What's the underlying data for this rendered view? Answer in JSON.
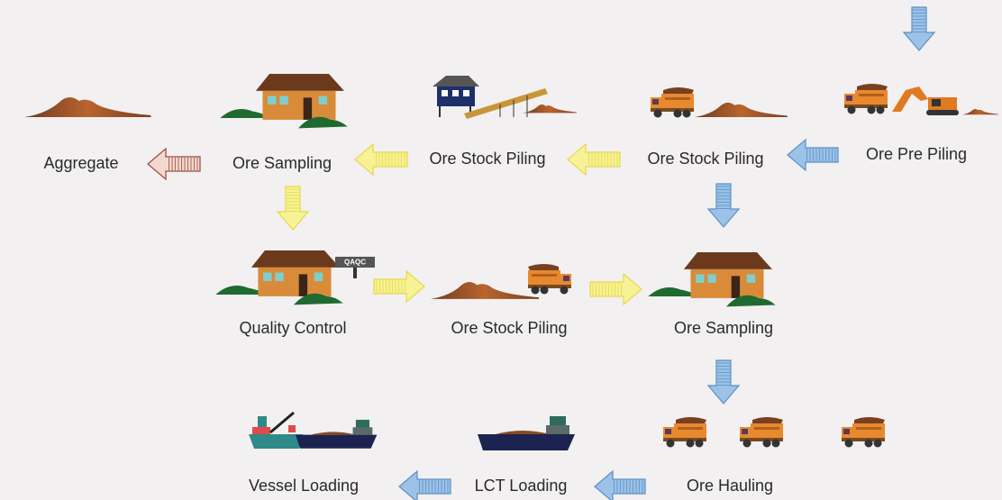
{
  "nodes": [
    {
      "label": "Ore Pre Piling"
    },
    {
      "label": "Ore Stock Piling"
    },
    {
      "label": "Ore Stock Piling"
    },
    {
      "label": "Ore Sampling"
    },
    {
      "label": "Aggregate"
    },
    {
      "label": "Quality Control"
    },
    {
      "label": "Ore Stock Piling"
    },
    {
      "label": "Ore Sampling"
    },
    {
      "label": "Ore Hauling"
    },
    {
      "label": "LCT Loading"
    },
    {
      "label": "Vessel Loading"
    }
  ],
  "sign": "QAQC"
}
